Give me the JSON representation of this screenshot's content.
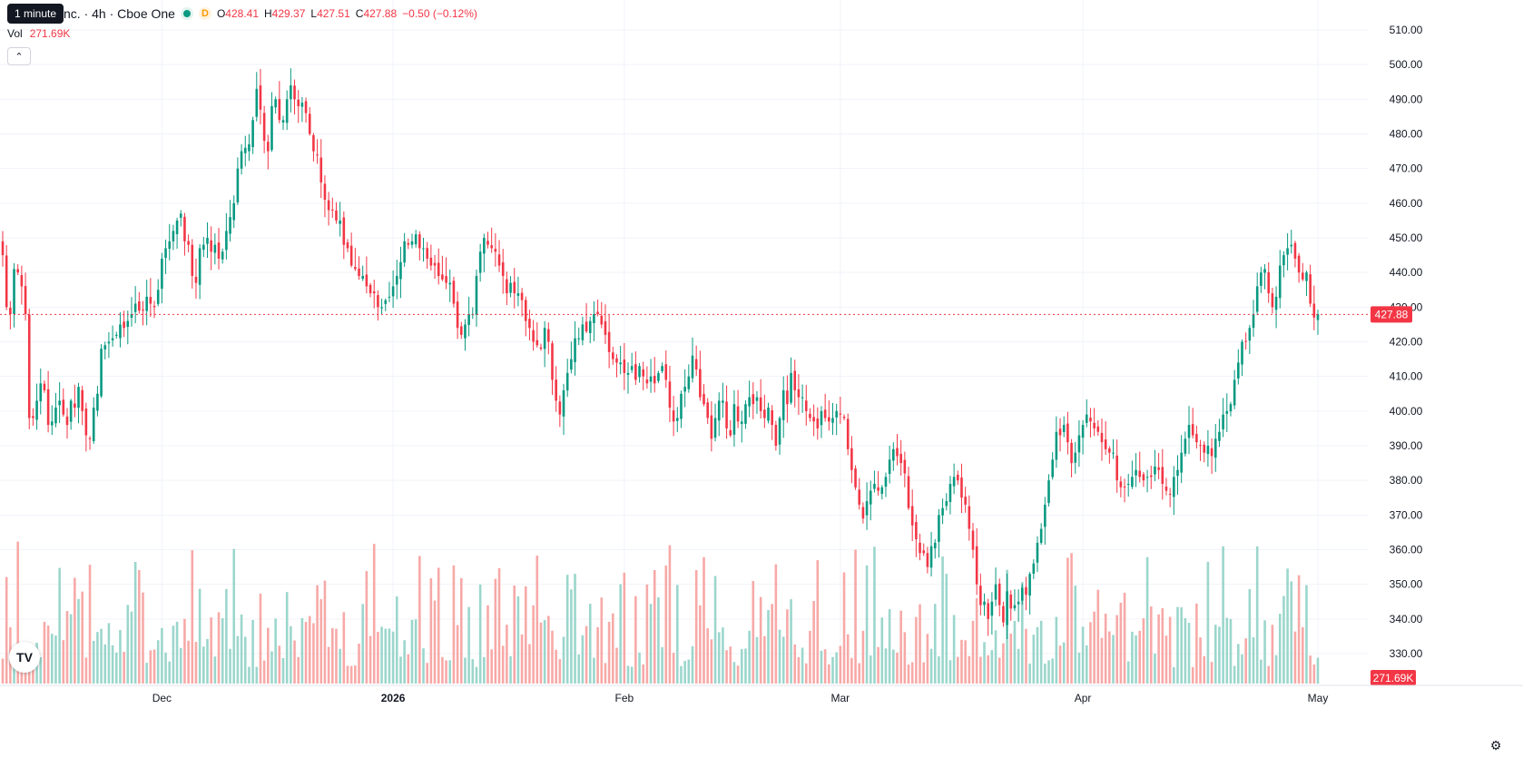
{
  "legend": {
    "title": "nc. · 4h · Cboe One",
    "d_badge": "D",
    "open_key": "O",
    "open": "428.41",
    "high_key": "H",
    "high": "429.37",
    "low_key": "L",
    "low": "427.51",
    "close_key": "C",
    "close": "427.88",
    "change": "−0.50 (−0.12%)",
    "vol_label": "Vol",
    "vol_value": "271.69K"
  },
  "tooltip": "1 minute",
  "collapse_icon": "chevron-up-icon",
  "logo": "TV",
  "settings_icon": "gear-icon",
  "colors": {
    "up": "#089981",
    "down": "#f23645",
    "vol_up": "#9bd6cc",
    "vol_down": "#f7a9a7",
    "grid": "#f0f3fa",
    "axis_text": "#131722"
  },
  "chart_data": {
    "type": "candlestick",
    "interval": "4h",
    "y_ticks": [
      330,
      340,
      350,
      360,
      370,
      380,
      390,
      400,
      410,
      420,
      430,
      440,
      450,
      460,
      470,
      480,
      490,
      500,
      510
    ],
    "y_tick_labels": [
      "330.00",
      "340.00",
      "350.00",
      "360.00",
      "370.00",
      "380.00",
      "390.00",
      "400.00",
      "410.00",
      "420.00",
      "430.00",
      "440.00",
      "450.00",
      "460.00",
      "470.00",
      "480.00",
      "490.00",
      "500.00",
      "510.00"
    ],
    "x_labels": [
      {
        "label": "Dec",
        "index": 42
      },
      {
        "label": "2026",
        "index": 103
      },
      {
        "label": "Feb",
        "index": 164
      },
      {
        "label": "Mar",
        "index": 221
      },
      {
        "label": "Apr",
        "index": 285
      },
      {
        "label": "May",
        "index": 347
      }
    ],
    "last_price": 427.88,
    "last_price_label": "427.88",
    "last_volume_label": "271.69K",
    "closes": [
      445,
      430,
      428,
      441,
      440,
      436,
      428,
      398,
      398,
      403,
      408,
      406,
      396,
      397,
      401,
      403,
      399,
      396,
      403,
      401,
      407,
      400,
      393,
      392,
      401,
      405,
      418,
      419,
      420,
      421,
      422,
      425,
      424,
      426,
      428,
      431,
      429,
      429,
      433,
      431,
      430,
      435,
      444,
      447,
      449,
      452,
      455,
      457,
      449,
      448,
      439,
      437,
      447,
      448,
      450,
      446,
      448,
      444,
      446,
      452,
      456,
      460,
      470,
      475,
      476,
      477,
      484,
      493,
      487,
      478,
      475,
      488,
      490,
      484,
      484,
      490,
      494,
      490,
      488,
      489,
      486,
      480,
      475,
      474,
      466,
      461,
      458,
      458,
      455,
      455,
      448,
      447,
      442,
      441,
      439,
      439,
      436,
      434,
      434,
      430,
      430,
      432,
      433,
      436,
      439,
      443,
      449,
      448,
      449,
      451,
      447,
      447,
      444,
      442,
      442,
      439,
      438,
      437,
      437,
      431,
      424,
      422,
      425,
      428,
      428,
      439,
      446,
      450,
      448,
      447,
      446,
      442,
      439,
      434,
      437,
      434,
      434,
      432,
      426,
      424,
      420,
      419,
      418,
      424,
      420,
      409,
      403,
      399,
      406,
      411,
      415,
      421,
      421,
      425,
      423,
      426,
      428,
      428,
      425,
      422,
      417,
      415,
      414,
      414,
      411,
      411,
      413,
      409,
      413,
      410,
      408,
      410,
      408,
      411,
      413,
      409,
      401,
      397,
      398,
      405,
      407,
      410,
      416,
      412,
      404,
      402,
      398,
      392,
      398,
      403,
      403,
      395,
      393,
      402,
      397,
      397,
      402,
      404,
      402,
      404,
      400,
      398,
      401,
      396,
      390,
      398,
      406,
      402,
      411,
      406,
      404,
      404,
      400,
      398,
      397,
      395,
      400,
      398,
      397,
      398,
      400,
      399,
      398,
      389,
      383,
      378,
      373,
      369,
      374,
      377,
      379,
      377,
      378,
      381,
      386,
      389,
      387,
      385,
      382,
      372,
      367,
      363,
      359,
      359,
      355,
      361,
      362,
      370,
      372,
      374,
      379,
      381,
      380,
      375,
      373,
      366,
      360,
      350,
      344,
      345,
      340,
      345,
      350,
      344,
      339,
      348,
      343,
      344,
      345,
      349,
      347,
      353,
      356,
      362,
      366,
      373,
      380,
      386,
      394,
      393,
      396,
      391,
      385,
      388,
      393,
      396,
      399,
      397,
      395,
      394,
      391,
      389,
      388,
      388,
      380,
      378,
      378,
      379,
      381,
      383,
      381,
      380,
      381,
      381,
      384,
      383,
      379,
      377,
      376,
      381,
      383,
      388,
      392,
      396,
      393,
      391,
      390,
      388,
      390,
      387,
      392,
      394,
      399,
      400,
      402,
      409,
      414,
      420,
      420,
      424,
      428,
      436,
      440,
      441,
      434,
      430,
      433,
      442,
      445,
      447,
      448,
      444,
      440,
      438,
      440,
      431,
      427,
      428
    ]
  }
}
